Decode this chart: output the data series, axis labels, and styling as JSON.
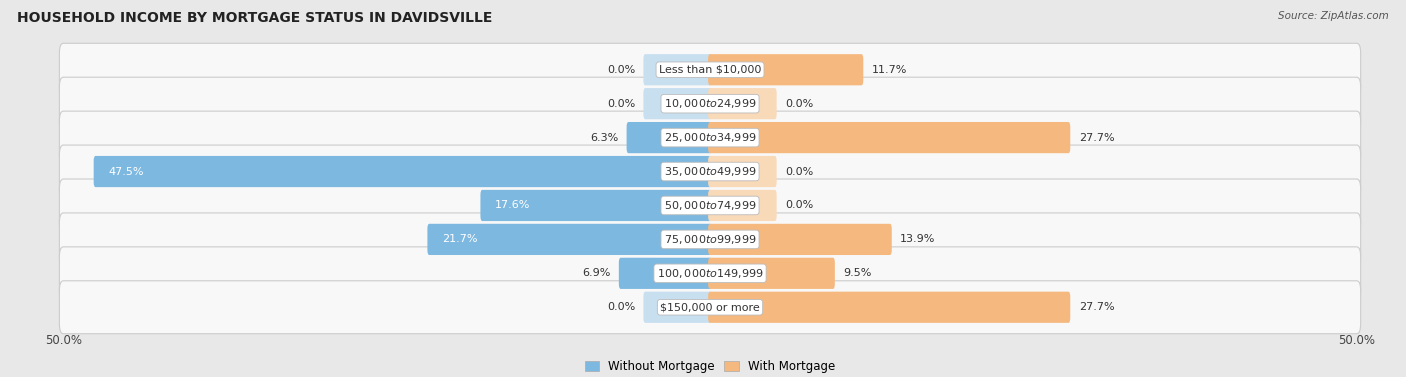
{
  "title": "HOUSEHOLD INCOME BY MORTGAGE STATUS IN DAVIDSVILLE",
  "source": "Source: ZipAtlas.com",
  "categories": [
    "Less than $10,000",
    "$10,000 to $24,999",
    "$25,000 to $34,999",
    "$35,000 to $49,999",
    "$50,000 to $74,999",
    "$75,000 to $99,999",
    "$100,000 to $149,999",
    "$150,000 or more"
  ],
  "without_mortgage": [
    0.0,
    0.0,
    6.3,
    47.5,
    17.6,
    21.7,
    6.9,
    0.0
  ],
  "with_mortgage": [
    11.7,
    0.0,
    27.7,
    0.0,
    0.0,
    13.9,
    9.5,
    27.7
  ],
  "color_without": "#7db8e0",
  "color_with": "#f5b97f",
  "color_without_light": "#c8dff0",
  "color_with_light": "#f8d9b8",
  "axis_limit": 50.0,
  "background_color": "#e8e8e8",
  "row_bg_even": "#f5f5f5",
  "row_bg_odd": "#ebebeb",
  "legend_label_without": "Without Mortgage",
  "legend_label_with": "With Mortgage",
  "title_fontsize": 10,
  "label_fontsize": 8,
  "category_fontsize": 8
}
